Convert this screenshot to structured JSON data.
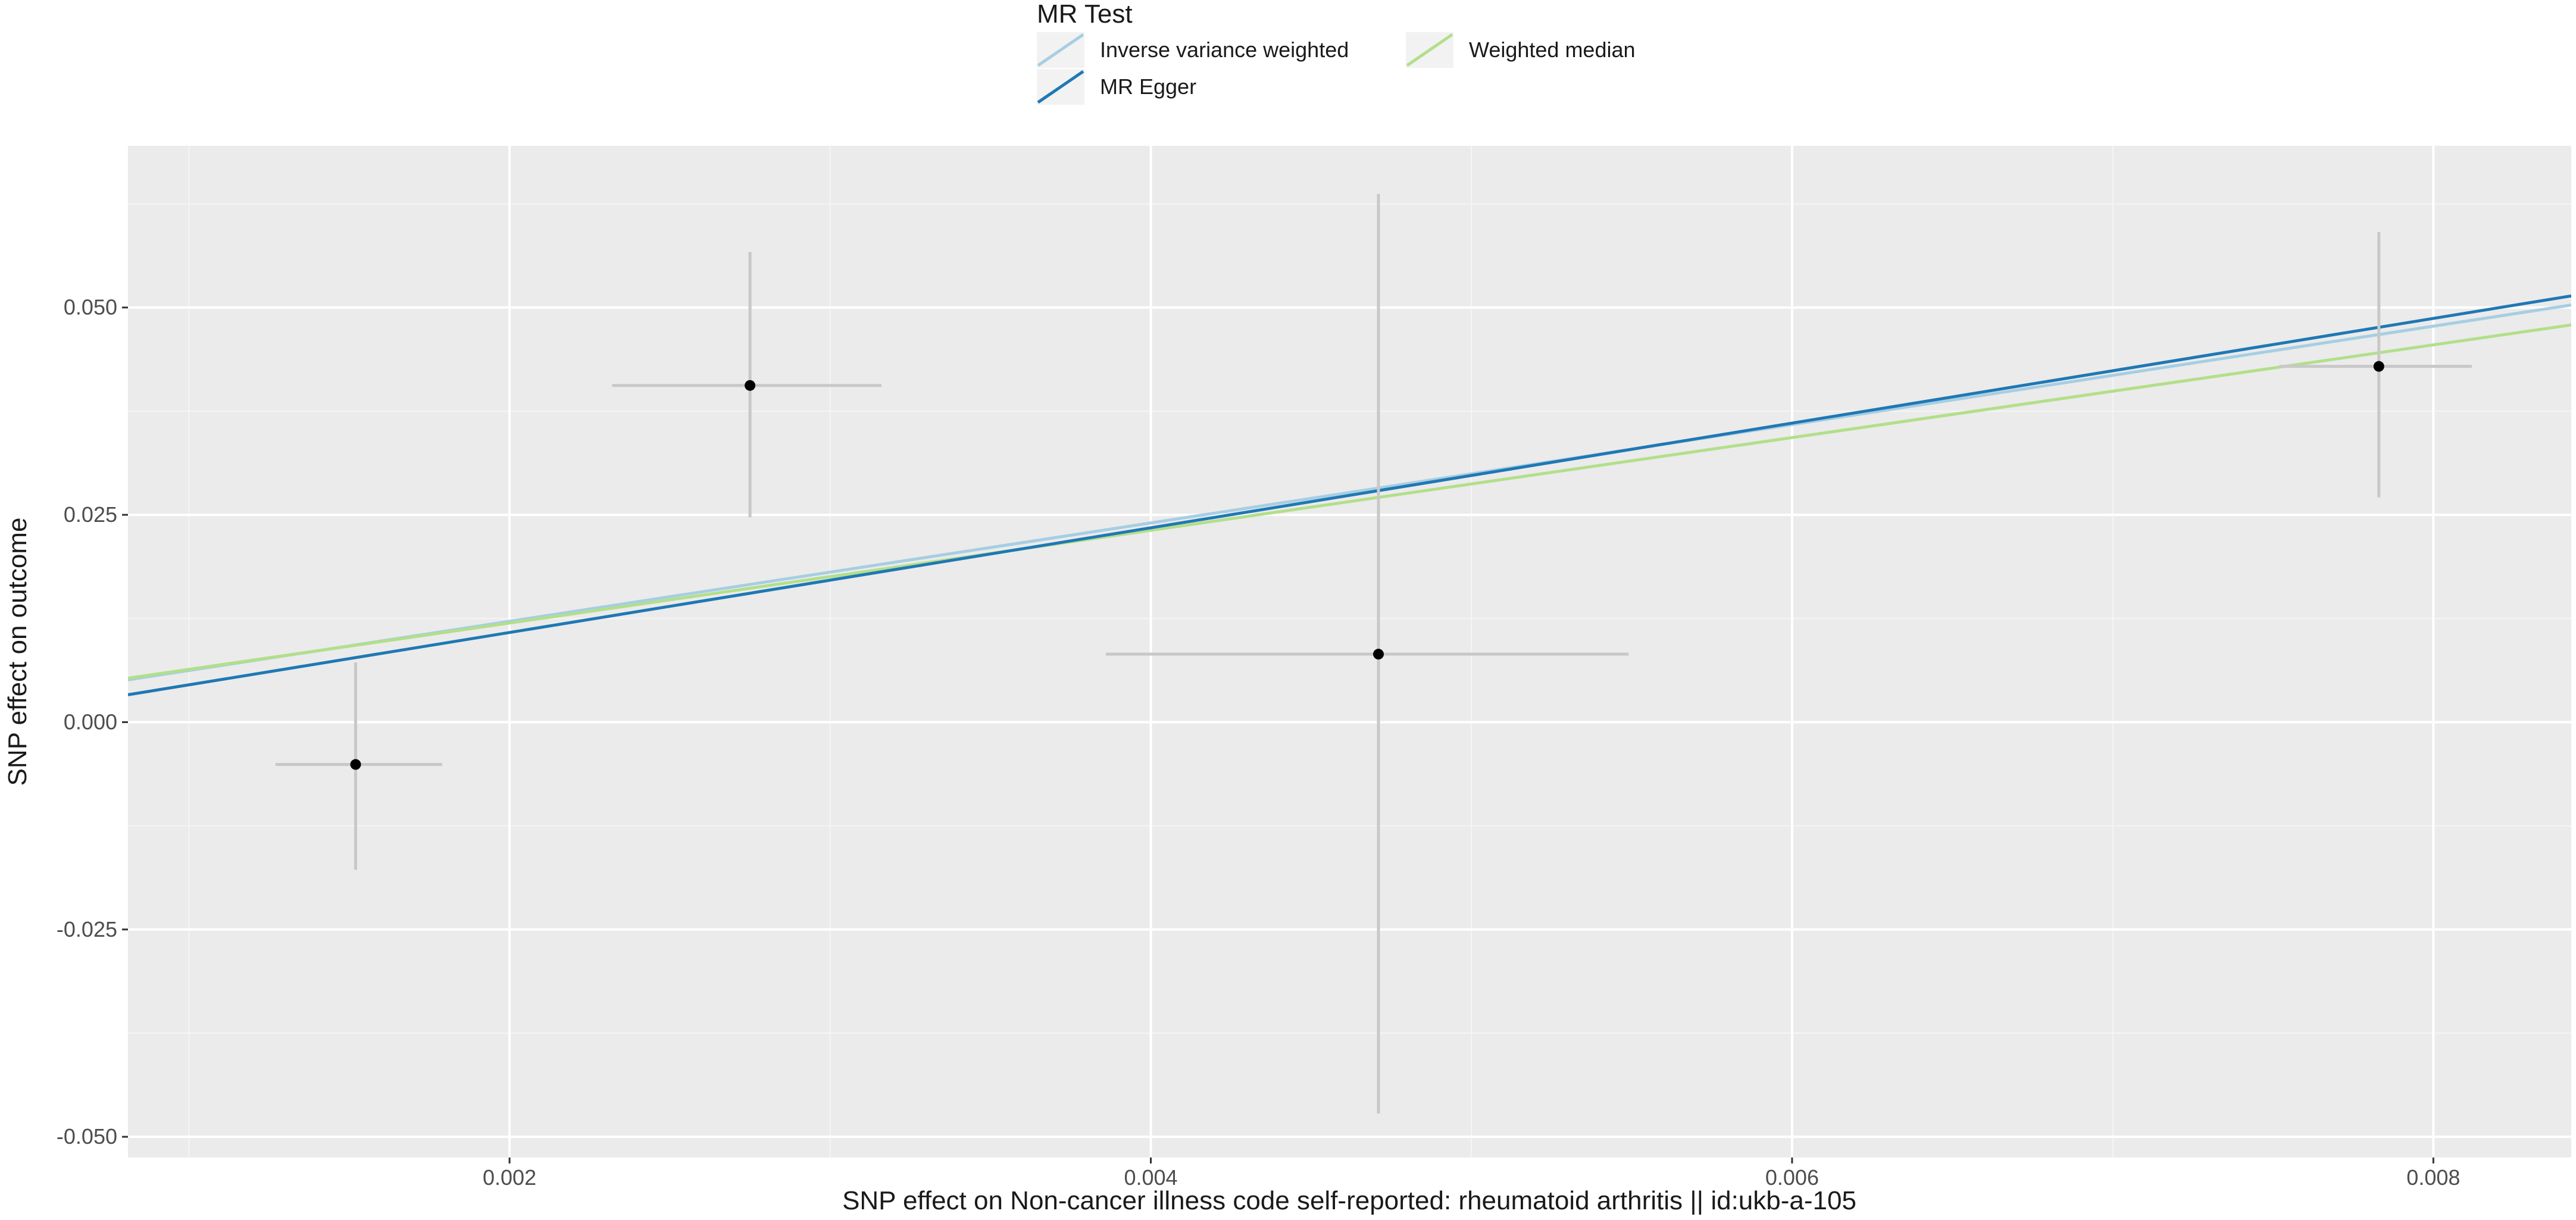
{
  "chart_data": {
    "type": "scatter",
    "title": "",
    "xlabel": "SNP effect on Non-cancer illness code  self-reported: rheumatoid arthritis || id:ukb-a-105",
    "ylabel": "SNP effect on outcome",
    "xlim": [
      0.00081,
      0.00843
    ],
    "ylim": [
      -0.0525,
      0.0695
    ],
    "x_ticks": [
      0.002,
      0.004,
      0.006,
      0.008
    ],
    "x_tick_labels": [
      "0.002",
      "0.004",
      "0.006",
      "0.008"
    ],
    "y_ticks": [
      -0.05,
      -0.025,
      0.0,
      0.025,
      0.05
    ],
    "y_tick_labels": [
      "-0.050",
      "-0.025",
      "0.000",
      "0.025",
      "0.050"
    ],
    "grid": true,
    "legend_position": "top",
    "legend_title": "MR Test",
    "points": [
      {
        "x": 0.00152,
        "y": -0.0051,
        "x_lo": 0.00127,
        "x_hi": 0.00179,
        "y_lo": -0.0178,
        "y_hi": 0.0072
      },
      {
        "x": 0.00275,
        "y": 0.0406,
        "x_lo": 0.00232,
        "x_hi": 0.00316,
        "y_lo": 0.0247,
        "y_hi": 0.0567
      },
      {
        "x": 0.00471,
        "y": 0.0082,
        "x_lo": 0.00386,
        "x_hi": 0.00549,
        "y_lo": -0.0472,
        "y_hi": 0.0637
      },
      {
        "x": 0.00783,
        "y": 0.0429,
        "x_lo": 0.00752,
        "x_hi": 0.00812,
        "y_lo": 0.0271,
        "y_hi": 0.0591
      }
    ],
    "series": [
      {
        "name": "Inverse variance weighted",
        "color": "#a6cee3",
        "x": [
          0.00081,
          0.00843
        ],
        "y": [
          0.0051,
          0.0503
        ]
      },
      {
        "name": "MR Egger",
        "color": "#1f78b4",
        "x": [
          0.00081,
          0.00843
        ],
        "y": [
          0.0033,
          0.0514
        ]
      },
      {
        "name": "Weighted median",
        "color": "#b2df8a",
        "x": [
          0.00081,
          0.00843
        ],
        "y": [
          0.0053,
          0.0479
        ]
      }
    ],
    "legend_layout": [
      {
        "series": 0,
        "row": 0,
        "col": 0
      },
      {
        "series": 1,
        "row": 1,
        "col": 0
      },
      {
        "series": 2,
        "row": 0,
        "col": 1
      }
    ]
  }
}
